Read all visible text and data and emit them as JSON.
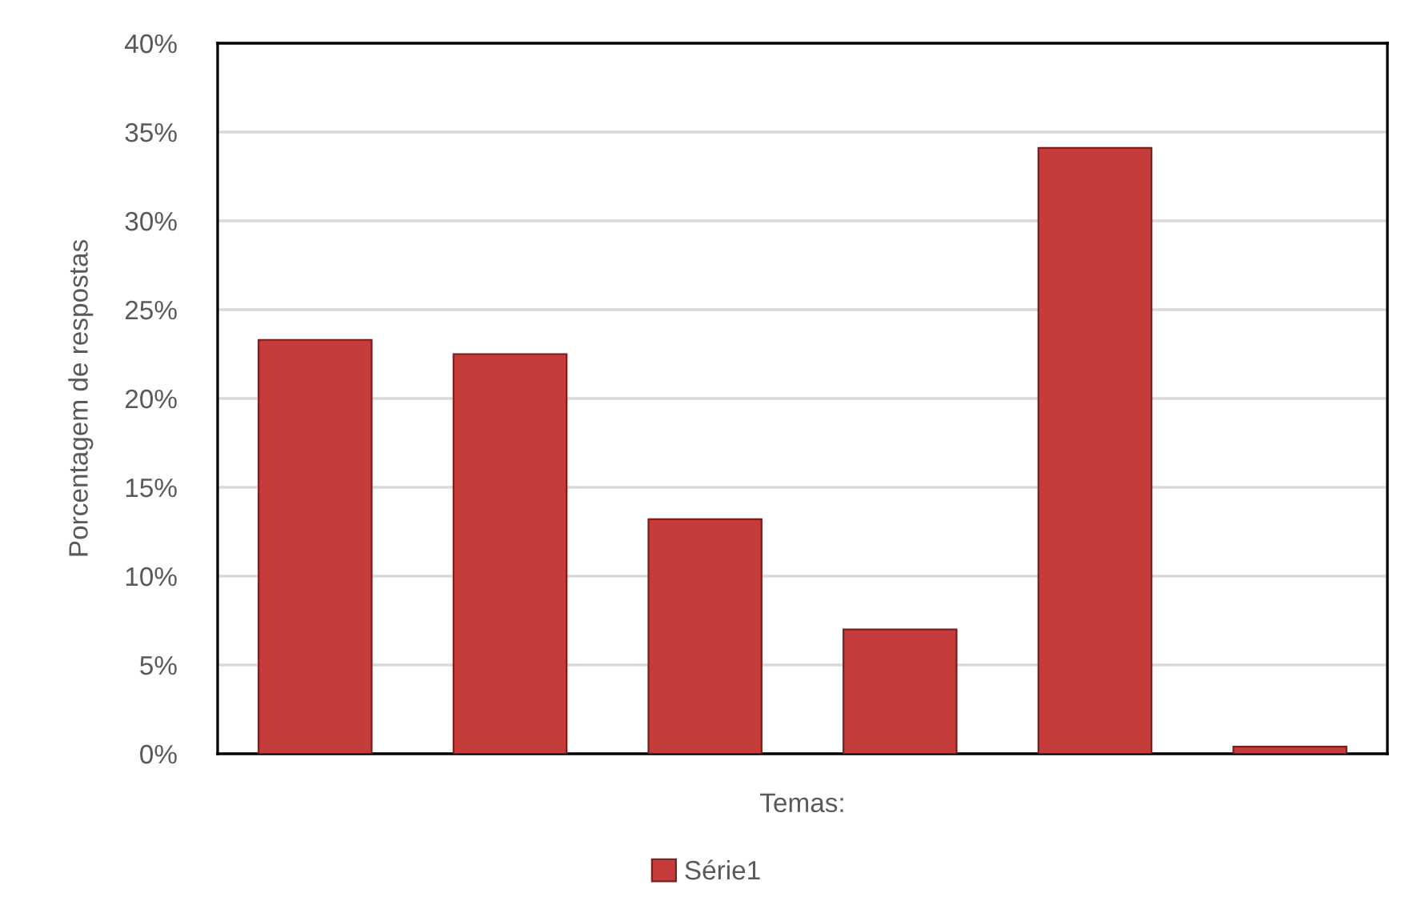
{
  "chart_data": {
    "type": "bar",
    "xlabel": "Temas:",
    "ylabel": "Porcentagem de respostas",
    "categories": [
      null,
      null,
      null,
      null,
      null,
      null
    ],
    "series": [
      {
        "name": "Série1",
        "color": "#c63c3a",
        "values": [
          23.3,
          22.5,
          13.2,
          7.0,
          34.1,
          0.4
        ]
      }
    ],
    "ylim": [
      0,
      40
    ],
    "yticks": [
      {
        "value": 0,
        "label": "0%"
      },
      {
        "value": 5,
        "label": "5%"
      },
      {
        "value": 10,
        "label": "10%"
      },
      {
        "value": 15,
        "label": "15%"
      },
      {
        "value": 20,
        "label": "20%"
      },
      {
        "value": 25,
        "label": "25%"
      },
      {
        "value": 30,
        "label": "30%"
      },
      {
        "value": 35,
        "label": "35%"
      },
      {
        "value": 40,
        "label": "40%"
      }
    ],
    "grid": "y",
    "legend": "bottom"
  }
}
